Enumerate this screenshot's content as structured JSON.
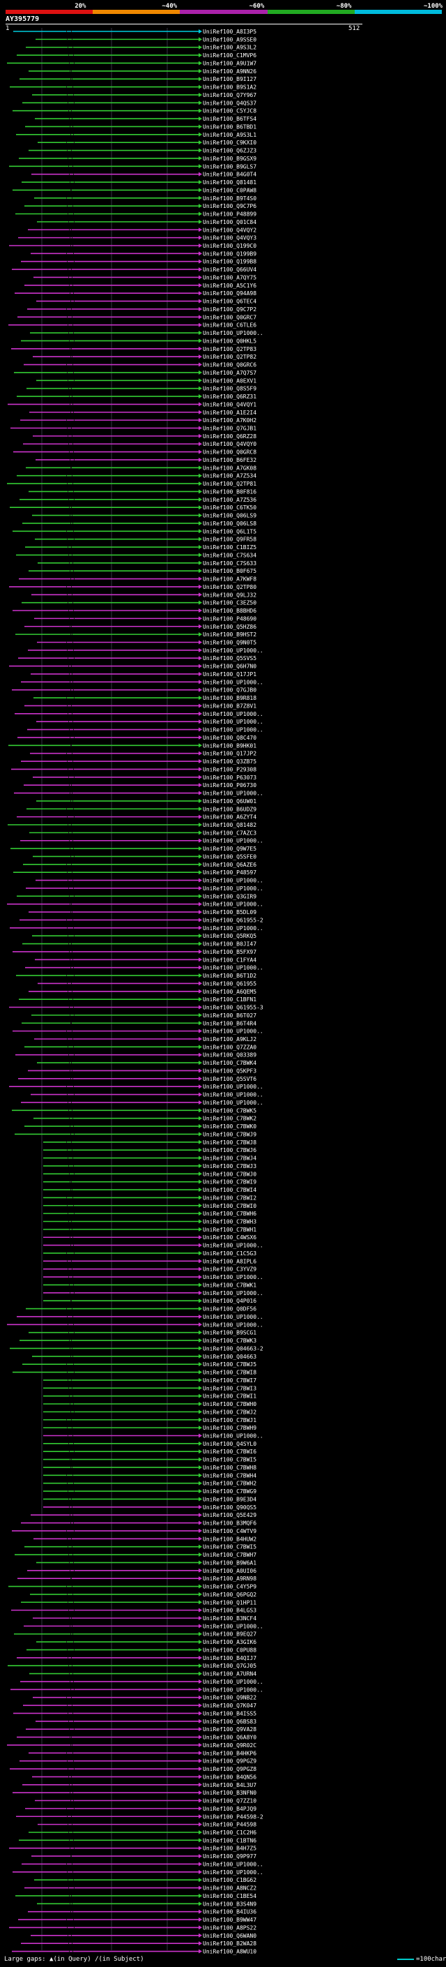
{
  "query": {
    "title": "AY395779",
    "start_label": "1",
    "end_label": "512"
  },
  "score_scale": {
    "segments": [
      {
        "label": "20%",
        "color": "#dd1111"
      },
      {
        "label": "~40%",
        "color": "#ee8800"
      },
      {
        "label": "~60%",
        "color": "#aa22aa"
      },
      {
        "label": "~80%",
        "color": "#22aa22"
      },
      {
        "label": "~100%",
        "color": "#00bbdd"
      }
    ]
  },
  "colors": {
    "green": "#33cc33",
    "magenta": "#cc33cc",
    "cyan": "#00ccdd",
    "dark": "#222222"
  },
  "hits": [
    {
      "id": "UniRef100_A8I3P5",
      "color": "cyan"
    },
    {
      "id": "UniRef100_A9SSE0",
      "color": "green"
    },
    {
      "id": "UniRef100_A9S3L2",
      "color": "green"
    },
    {
      "id": "UniRef100_C1MVP6",
      "color": "green"
    },
    {
      "id": "UniRef100_A9U1W7",
      "color": "green"
    },
    {
      "id": "UniRef100_A9NN26",
      "color": "green"
    },
    {
      "id": "UniRef100_B9I127",
      "color": "green"
    },
    {
      "id": "UniRef100_B9S1A2",
      "color": "green"
    },
    {
      "id": "UniRef100_Q7Y967",
      "color": "green"
    },
    {
      "id": "UniRef100_Q4QS37",
      "color": "green"
    },
    {
      "id": "UniRef100_C5YJC8",
      "color": "green"
    },
    {
      "id": "UniRef100_B6TFS4",
      "color": "green"
    },
    {
      "id": "UniRef100_B6TBD1",
      "color": "green"
    },
    {
      "id": "UniRef100_A9S3L1",
      "color": "green"
    },
    {
      "id": "UniRef100_C9KXI0",
      "color": "green"
    },
    {
      "id": "UniRef100_Q6ZJZ3",
      "color": "green"
    },
    {
      "id": "UniRef100_B9GSX9",
      "color": "green"
    },
    {
      "id": "UniRef100_B9GLS7",
      "color": "green"
    },
    {
      "id": "UniRef100_B4G0T4",
      "color": "magenta"
    },
    {
      "id": "UniRef100_Q81481",
      "color": "green"
    },
    {
      "id": "UniRef100_C0PAW8",
      "color": "green"
    },
    {
      "id": "UniRef100_B9T4S0",
      "color": "green"
    },
    {
      "id": "UniRef100_Q9C7P6",
      "color": "green"
    },
    {
      "id": "UniRef100_P48899",
      "color": "green"
    },
    {
      "id": "UniRef100_Q01C84",
      "color": "green"
    },
    {
      "id": "UniRef100_Q4VQY2",
      "color": "magenta"
    },
    {
      "id": "UniRef100_Q4VQY3",
      "color": "magenta"
    },
    {
      "id": "UniRef100_Q199C0",
      "color": "magenta"
    },
    {
      "id": "UniRef100_Q199B9",
      "color": "magenta"
    },
    {
      "id": "UniRef100_Q199B8",
      "color": "magenta"
    },
    {
      "id": "UniRef100_Q66UV4",
      "color": "magenta"
    },
    {
      "id": "UniRef100_A7QY75",
      "color": "magenta"
    },
    {
      "id": "UniRef100_A5C1Y6",
      "color": "magenta"
    },
    {
      "id": "UniRef100_Q94A98",
      "color": "magenta"
    },
    {
      "id": "UniRef100_Q6TEC4",
      "color": "magenta"
    },
    {
      "id": "UniRef100_Q9C7P2",
      "color": "magenta"
    },
    {
      "id": "UniRef100_Q0GRC7",
      "color": "magenta"
    },
    {
      "id": "UniRef100_C6TLE6",
      "color": "magenta"
    },
    {
      "id": "UniRef100_UP1000..",
      "color": "green"
    },
    {
      "id": "UniRef100_Q0HKL5",
      "color": "green"
    },
    {
      "id": "UniRef100_Q2TP83",
      "color": "magenta"
    },
    {
      "id": "UniRef100_Q2TP82",
      "color": "magenta"
    },
    {
      "id": "UniRef100_Q0GRC6",
      "color": "magenta"
    },
    {
      "id": "UniRef100_A7Q7S7",
      "color": "green"
    },
    {
      "id": "UniRef100_A0EXV1",
      "color": "green"
    },
    {
      "id": "UniRef100_Q8S5F9",
      "color": "green"
    },
    {
      "id": "UniRef100_Q6RZ31",
      "color": "green"
    },
    {
      "id": "UniRef100_Q4VQY1",
      "color": "magenta"
    },
    {
      "id": "UniRef100_A1E2I4",
      "color": "magenta"
    },
    {
      "id": "UniRef100_A7K0H2",
      "color": "magenta"
    },
    {
      "id": "UniRef100_Q7GJB1",
      "color": "magenta"
    },
    {
      "id": "UniRef100_Q6RZ28",
      "color": "magenta"
    },
    {
      "id": "UniRef100_Q4VQY0",
      "color": "magenta"
    },
    {
      "id": "UniRef100_Q0GRC8",
      "color": "magenta"
    },
    {
      "id": "UniRef100_B6FE32",
      "color": "magenta"
    },
    {
      "id": "UniRef100_A7GK08",
      "color": "green"
    },
    {
      "id": "UniRef100_A7Z534",
      "color": "green"
    },
    {
      "id": "UniRef100_Q2TP81",
      "color": "green"
    },
    {
      "id": "UniRef100_B0F816",
      "color": "green"
    },
    {
      "id": "UniRef100_A7Z536",
      "color": "green"
    },
    {
      "id": "UniRef100_C6TK50",
      "color": "green"
    },
    {
      "id": "UniRef100_Q06LS9",
      "color": "green"
    },
    {
      "id": "UniRef100_Q06LS8",
      "color": "green"
    },
    {
      "id": "UniRef100_Q6L1T5",
      "color": "green"
    },
    {
      "id": "UniRef100_Q9FR58",
      "color": "green"
    },
    {
      "id": "UniRef100_C1BIZ5",
      "color": "green"
    },
    {
      "id": "UniRef100_C7S634",
      "color": "green"
    },
    {
      "id": "UniRef100_C7S633",
      "color": "green"
    },
    {
      "id": "UniRef100_B0F675",
      "color": "green"
    },
    {
      "id": "UniRef100_A7KWF8",
      "color": "magenta"
    },
    {
      "id": "UniRef100_Q2TP80",
      "color": "magenta"
    },
    {
      "id": "UniRef100_Q9LJ32",
      "color": "magenta"
    },
    {
      "id": "UniRef100_C3EZ50",
      "color": "green"
    },
    {
      "id": "UniRef100_B8BHD6",
      "color": "magenta"
    },
    {
      "id": "UniRef100_P48690",
      "color": "magenta"
    },
    {
      "id": "UniRef100_Q5HZ86",
      "color": "magenta"
    },
    {
      "id": "UniRef100_B9HST2",
      "color": "green"
    },
    {
      "id": "UniRef100_Q9N0T5",
      "color": "magenta"
    },
    {
      "id": "UniRef100_UP1000..",
      "color": "magenta"
    },
    {
      "id": "UniRef100_Q5SVS5",
      "color": "magenta"
    },
    {
      "id": "UniRef100_Q6H7N0",
      "color": "magenta"
    },
    {
      "id": "UniRef100_Q17JP1",
      "color": "magenta"
    },
    {
      "id": "UniRef100_UP1000..",
      "color": "magenta"
    },
    {
      "id": "UniRef100_Q7GJB0",
      "color": "magenta"
    },
    {
      "id": "UniRef100_B9R818",
      "color": "green"
    },
    {
      "id": "UniRef100_B7Z8V1",
      "color": "magenta"
    },
    {
      "id": "UniRef100_UP1000..",
      "color": "magenta"
    },
    {
      "id": "UniRef100_UP1000..",
      "color": "magenta"
    },
    {
      "id": "UniRef100_UP1000..",
      "color": "magenta"
    },
    {
      "id": "UniRef100_Q8C470",
      "color": "magenta"
    },
    {
      "id": "UniRef100_B9HK01",
      "color": "green"
    },
    {
      "id": "UniRef100_Q17JP2",
      "color": "magenta"
    },
    {
      "id": "UniRef100_Q3ZB75",
      "color": "magenta"
    },
    {
      "id": "UniRef100_P29308",
      "color": "magenta"
    },
    {
      "id": "UniRef100_P63073",
      "color": "magenta"
    },
    {
      "id": "UniRef100_P06730",
      "color": "magenta"
    },
    {
      "id": "UniRef100_UP1000..",
      "color": "magenta"
    },
    {
      "id": "UniRef100_Q6UW01",
      "color": "green"
    },
    {
      "id": "UniRef100_B6UDZ9",
      "color": "green"
    },
    {
      "id": "UniRef100_A6ZYT4",
      "color": "magenta"
    },
    {
      "id": "UniRef100_Q81482",
      "color": "green"
    },
    {
      "id": "UniRef100_C7AZC3",
      "color": "green"
    },
    {
      "id": "UniRef100_UP1000..",
      "color": "magenta"
    },
    {
      "id": "UniRef100_Q9W7E5",
      "color": "green"
    },
    {
      "id": "UniRef100_Q5SFE0",
      "color": "green"
    },
    {
      "id": "UniRef100_Q6AZE6",
      "color": "green"
    },
    {
      "id": "UniRef100_P48597",
      "color": "green"
    },
    {
      "id": "UniRef100_UP1000..",
      "color": "magenta"
    },
    {
      "id": "UniRef100_UP1000..",
      "color": "magenta"
    },
    {
      "id": "UniRef100_Q3GIR9",
      "color": "green"
    },
    {
      "id": "UniRef100_UP1000..",
      "color": "magenta"
    },
    {
      "id": "UniRef100_B5DL09",
      "color": "magenta"
    },
    {
      "id": "UniRef100_Q61955-2",
      "color": "magenta"
    },
    {
      "id": "UniRef100_UP1000..",
      "color": "magenta"
    },
    {
      "id": "UniRef100_Q5RKQ5",
      "color": "green"
    },
    {
      "id": "UniRef100_B0JI47",
      "color": "green"
    },
    {
      "id": "UniRef100_B5FX97",
      "color": "magenta"
    },
    {
      "id": "UniRef100_C1FYA4",
      "color": "magenta"
    },
    {
      "id": "UniRef100_UP1000..",
      "color": "magenta"
    },
    {
      "id": "UniRef100_B6T1D2",
      "color": "green"
    },
    {
      "id": "UniRef100_Q61955",
      "color": "magenta"
    },
    {
      "id": "UniRef100_A6QEM5",
      "color": "magenta"
    },
    {
      "id": "UniRef100_C1BFN1",
      "color": "green"
    },
    {
      "id": "UniRef100_Q61955-3",
      "color": "magenta"
    },
    {
      "id": "UniRef100_B6T027",
      "color": "green"
    },
    {
      "id": "UniRef100_B6T4R4",
      "color": "green"
    },
    {
      "id": "UniRef100_UP1000..",
      "color": "magenta"
    },
    {
      "id": "UniRef100_A9KLJ2",
      "color": "magenta"
    },
    {
      "id": "UniRef100_Q7ZZA0",
      "color": "green"
    },
    {
      "id": "UniRef100_Q03389",
      "color": "magenta"
    },
    {
      "id": "UniRef100_C7BWK4",
      "color": "green"
    },
    {
      "id": "UniRef100_Q5KPF3",
      "color": "magenta"
    },
    {
      "id": "UniRef100_Q5SVT6",
      "color": "magenta"
    },
    {
      "id": "UniRef100_UP1000..",
      "color": "magenta"
    },
    {
      "id": "UniRef100_UP1000..",
      "color": "magenta"
    },
    {
      "id": "UniRef100_UP1000..",
      "color": "magenta"
    },
    {
      "id": "UniRef100_C7BWK5",
      "color": "green"
    },
    {
      "id": "UniRef100_C7BWK2",
      "color": "green"
    },
    {
      "id": "UniRef100_C7BWK0",
      "color": "green"
    },
    {
      "id": "UniRef100_C7BWJ9",
      "color": "green"
    },
    {
      "id": "UniRef100_C7BWJ8",
      "color": "green"
    },
    {
      "id": "UniRef100_C7BWJ6",
      "color": "green"
    },
    {
      "id": "UniRef100_C7BWJ4",
      "color": "green"
    },
    {
      "id": "UniRef100_C7BWJ3",
      "color": "green"
    },
    {
      "id": "UniRef100_C7BWJ0",
      "color": "green"
    },
    {
      "id": "UniRef100_C7BWI9",
      "color": "green"
    },
    {
      "id": "UniRef100_C7BWI4",
      "color": "green"
    },
    {
      "id": "UniRef100_C7BWI2",
      "color": "green"
    },
    {
      "id": "UniRef100_C7BWI0",
      "color": "green"
    },
    {
      "id": "UniRef100_C7BWH6",
      "color": "green"
    },
    {
      "id": "UniRef100_C7BWH3",
      "color": "green"
    },
    {
      "id": "UniRef100_C7BWH1",
      "color": "green"
    },
    {
      "id": "UniRef100_C4WSX6",
      "color": "magenta"
    },
    {
      "id": "UniRef100_UP1000..",
      "color": "magenta"
    },
    {
      "id": "UniRef100_C1C5G3",
      "color": "green"
    },
    {
      "id": "UniRef100_A8IPL6",
      "color": "magenta"
    },
    {
      "id": "UniRef100_C3YVZ9",
      "color": "magenta"
    },
    {
      "id": "UniRef100_UP1000..",
      "color": "magenta"
    },
    {
      "id": "UniRef100_C7BWK1",
      "color": "green"
    },
    {
      "id": "UniRef100_UP1000..",
      "color": "magenta"
    },
    {
      "id": "UniRef100_Q4P016",
      "color": "green"
    },
    {
      "id": "UniRef100_Q0DF56",
      "color": "green"
    },
    {
      "id": "UniRef100_UP1000..",
      "color": "magenta"
    },
    {
      "id": "UniRef100_UP1000..",
      "color": "magenta"
    },
    {
      "id": "UniRef100_B9SCG1",
      "color": "green"
    },
    {
      "id": "UniRef100_C7BWK3",
      "color": "green"
    },
    {
      "id": "UniRef100_Q04663-2",
      "color": "green"
    },
    {
      "id": "UniRef100_Q04663",
      "color": "green"
    },
    {
      "id": "UniRef100_C7BWJ5",
      "color": "green"
    },
    {
      "id": "UniRef100_C7BWI8",
      "color": "green"
    },
    {
      "id": "UniRef100_C7BWI7",
      "color": "green"
    },
    {
      "id": "UniRef100_C7BWI3",
      "color": "green"
    },
    {
      "id": "UniRef100_C7BWI1",
      "color": "green"
    },
    {
      "id": "UniRef100_C7BWH0",
      "color": "green"
    },
    {
      "id": "UniRef100_C7BWJ2",
      "color": "green"
    },
    {
      "id": "UniRef100_C7BWJ1",
      "color": "green"
    },
    {
      "id": "UniRef100_C7BWH9",
      "color": "green"
    },
    {
      "id": "UniRef100_UP1000..",
      "color": "magenta"
    },
    {
      "id": "UniRef100_Q4SYL0",
      "color": "green"
    },
    {
      "id": "UniRef100_C7BWI6",
      "color": "green"
    },
    {
      "id": "UniRef100_C7BWI5",
      "color": "green"
    },
    {
      "id": "UniRef100_C7BWH8",
      "color": "green"
    },
    {
      "id": "UniRef100_C7BWH4",
      "color": "green"
    },
    {
      "id": "UniRef100_C7BWH2",
      "color": "green"
    },
    {
      "id": "UniRef100_C7BWG9",
      "color": "green"
    },
    {
      "id": "UniRef100_B9E3D4",
      "color": "green"
    },
    {
      "id": "UniRef100_Q90QS5",
      "color": "magenta"
    },
    {
      "id": "UniRef100_Q5E429",
      "color": "magenta"
    },
    {
      "id": "UniRef100_B3MQF6",
      "color": "magenta"
    },
    {
      "id": "UniRef100_C4WTV9",
      "color": "magenta"
    },
    {
      "id": "UniRef100_B4HUW2",
      "color": "magenta"
    },
    {
      "id": "UniRef100_C7BWI5",
      "color": "green"
    },
    {
      "id": "UniRef100_C7BWH7",
      "color": "green"
    },
    {
      "id": "UniRef100_B9W6A1",
      "color": "green"
    },
    {
      "id": "UniRef100_A0UI06",
      "color": "magenta"
    },
    {
      "id": "UniRef100_A9RN98",
      "color": "magenta"
    },
    {
      "id": "UniRef100_C4Y5P9",
      "color": "green"
    },
    {
      "id": "UniRef100_Q6PGQ2",
      "color": "green"
    },
    {
      "id": "UniRef100_Q1HP11",
      "color": "green"
    },
    {
      "id": "UniRef100_B4LGS3",
      "color": "magenta"
    },
    {
      "id": "UniRef100_B3NCF4",
      "color": "magenta"
    },
    {
      "id": "UniRef100_UP1000..",
      "color": "magenta"
    },
    {
      "id": "UniRef100_B9EQ27",
      "color": "green"
    },
    {
      "id": "UniRef100_A3GIK6",
      "color": "green"
    },
    {
      "id": "UniRef100_C0PU88",
      "color": "green"
    },
    {
      "id": "UniRef100_B4QIJ7",
      "color": "magenta"
    },
    {
      "id": "UniRef100_Q7GJ05",
      "color": "green"
    },
    {
      "id": "UniRef100_A7URN4",
      "color": "green"
    },
    {
      "id": "UniRef100_UP1000..",
      "color": "magenta"
    },
    {
      "id": "UniRef100_UP1000..",
      "color": "magenta"
    },
    {
      "id": "UniRef100_Q9NB22",
      "color": "magenta"
    },
    {
      "id": "UniRef100_Q7K047",
      "color": "magenta"
    },
    {
      "id": "UniRef100_B4ISS5",
      "color": "magenta"
    },
    {
      "id": "UniRef100_Q6BS83",
      "color": "magenta"
    },
    {
      "id": "UniRef100_Q9VA28",
      "color": "magenta"
    },
    {
      "id": "UniRef100_Q6A8Y0",
      "color": "magenta"
    },
    {
      "id": "UniRef100_Q9R02C",
      "color": "magenta"
    },
    {
      "id": "UniRef100_B4HKP6",
      "color": "magenta"
    },
    {
      "id": "UniRef100_Q9PGZ9",
      "color": "magenta"
    },
    {
      "id": "UniRef100_Q9PGZ8",
      "color": "magenta"
    },
    {
      "id": "UniRef100_B4QN56",
      "color": "magenta"
    },
    {
      "id": "UniRef100_B4L3U7",
      "color": "magenta"
    },
    {
      "id": "UniRef100_B3NFN0",
      "color": "magenta"
    },
    {
      "id": "UniRef100_Q7ZZ10",
      "color": "magenta"
    },
    {
      "id": "UniRef100_B4PJQ9",
      "color": "magenta"
    },
    {
      "id": "UniRef100_P44598-2",
      "color": "magenta"
    },
    {
      "id": "UniRef100_P44598",
      "color": "magenta"
    },
    {
      "id": "UniRef100_C1C2H6",
      "color": "green"
    },
    {
      "id": "UniRef100_C1BTN6",
      "color": "green"
    },
    {
      "id": "UniRef100_B4H7Z5",
      "color": "magenta"
    },
    {
      "id": "UniRef100_Q9P977",
      "color": "magenta"
    },
    {
      "id": "UniRef100_UP1000..",
      "color": "magenta"
    },
    {
      "id": "UniRef100_UP1000..",
      "color": "magenta"
    },
    {
      "id": "UniRef100_C1BG62",
      "color": "green"
    },
    {
      "id": "UniRef100_A8NCZ2",
      "color": "magenta"
    },
    {
      "id": "UniRef100_C1BE54",
      "color": "green"
    },
    {
      "id": "UniRef100_B3S4N9",
      "color": "green"
    },
    {
      "id": "UniRef100_B4IU36",
      "color": "magenta"
    },
    {
      "id": "UniRef100_B9WW47",
      "color": "magenta"
    },
    {
      "id": "UniRef100_A8PS22",
      "color": "magenta"
    },
    {
      "id": "UniRef100_Q6WAN0",
      "color": "magenta"
    },
    {
      "id": "UniRef100_B2WA28",
      "color": "magenta"
    },
    {
      "id": "UniRef100_A8WU10",
      "color": "magenta"
    }
  ],
  "legend": {
    "large_gaps": "Large gaps:",
    "in_query": "(in Query)",
    "in_subject": "(in Subject)",
    "scale_text": "=100char."
  }
}
